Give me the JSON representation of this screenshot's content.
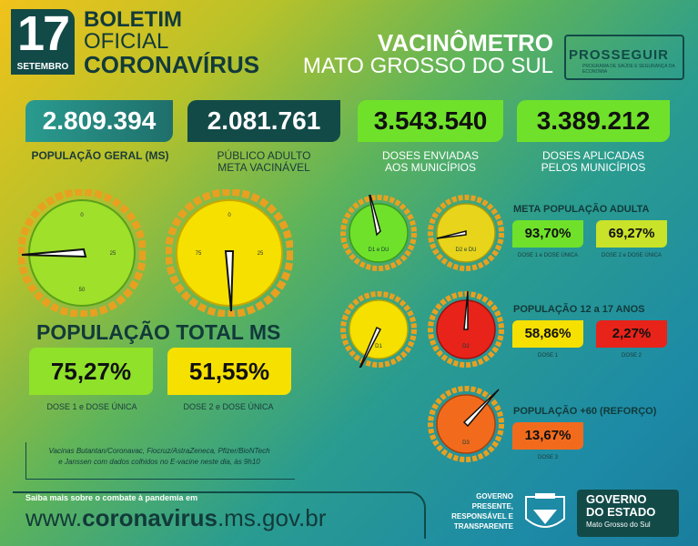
{
  "header": {
    "day": "17",
    "month": "SETEMBRO",
    "line1": "BOLETIM",
    "line2": "OFICIAL",
    "line3": "CORONAVÍRUS",
    "vac_title": "VACINÔMETRO",
    "vac_sub": "MATO GROSSO DO SUL",
    "partner": "PROSSEGUIR",
    "partner_sub": "PROGRAMA DE SAÚDE E SEGURANÇA DA ECONOMIA"
  },
  "stats": [
    {
      "value": "2.809.394",
      "label1": "POPULAÇÃO GERAL (MS)",
      "label2": ""
    },
    {
      "value": "2.081.761",
      "label1": "PÚBLICO ADULTO",
      "label2": "META VACINÁVEL"
    },
    {
      "value": "3.543.540",
      "label1": "DOSES ENVIADAS",
      "label2": "AOS MUNICÍPIOS"
    },
    {
      "value": "3.389.212",
      "label1": "DOSES APLICADAS",
      "label2": "PELOS MUNICÍPIOS"
    }
  ],
  "total": {
    "title": "POPULAÇÃO TOTAL MS",
    "dose1": "75,27%",
    "dose1_label": "DOSE 1 e DOSE ÚNICA",
    "dose2": "51,55%",
    "dose2_label": "DOSE 2 e DOSE ÚNICA"
  },
  "gauges": {
    "big1": {
      "t0": "0",
      "t25": "25",
      "t50": "50",
      "level": 0.7527
    },
    "big2": {
      "t0": "0",
      "t25": "25",
      "t75": "75",
      "level": 0.5155
    },
    "d1du_label": "D1 e DU",
    "d2du_label": "D2 e DU",
    "d1_label": "D1",
    "d2_label": "D2",
    "d3_label": "D3",
    "g0": "0",
    "g25": "25",
    "g50": "50",
    "g75": "75"
  },
  "adult": {
    "title": "META POPULAÇÃO ADULTA",
    "v1": "93,70%",
    "l1": "DOSE 1 e DOSE ÚNICA",
    "v2": "69,27%",
    "l2": "DOSE 2 e DOSE ÚNICA"
  },
  "teen": {
    "title": "POPULAÇÃO 12 a 17 ANOS",
    "v1": "58,86%",
    "l1": "DOSE 1",
    "v2": "2,27%",
    "l2": "DOSE 2"
  },
  "elder": {
    "title": "POPULAÇÃO +60  (REFORÇO)",
    "v1": "13,67%",
    "l1": "DOSE 3"
  },
  "note": {
    "line1": "Vacinas Butantan/Coronavac, Fiocruz/AstraZeneca, Pfizer/BioNTech",
    "line2": "e Janssen com dados colhidos no E-vacine neste dia, às 9h10"
  },
  "footer": {
    "saiba": "Saiba mais sobre o combate à pandemia em",
    "url_pre": "www.",
    "url_bold": "coronavirus",
    "url_post": ".ms.gov.br",
    "gov1": "GOVERNO",
    "gov2": "PRESENTE,",
    "gov3": "RESPONSÁVEL E",
    "gov4": "TRANSPARENTE",
    "gov_a": "GOVERNO",
    "gov_b": "DO ESTADO",
    "gov_c": "Mato Grosso do Sul"
  },
  "colors": {
    "dark": "#124a48",
    "lime": "#7ee32a",
    "yellow": "#f5e000",
    "red": "#e8231a",
    "orange": "#f26b1d",
    "yellowgreen": "#c9e22a"
  }
}
